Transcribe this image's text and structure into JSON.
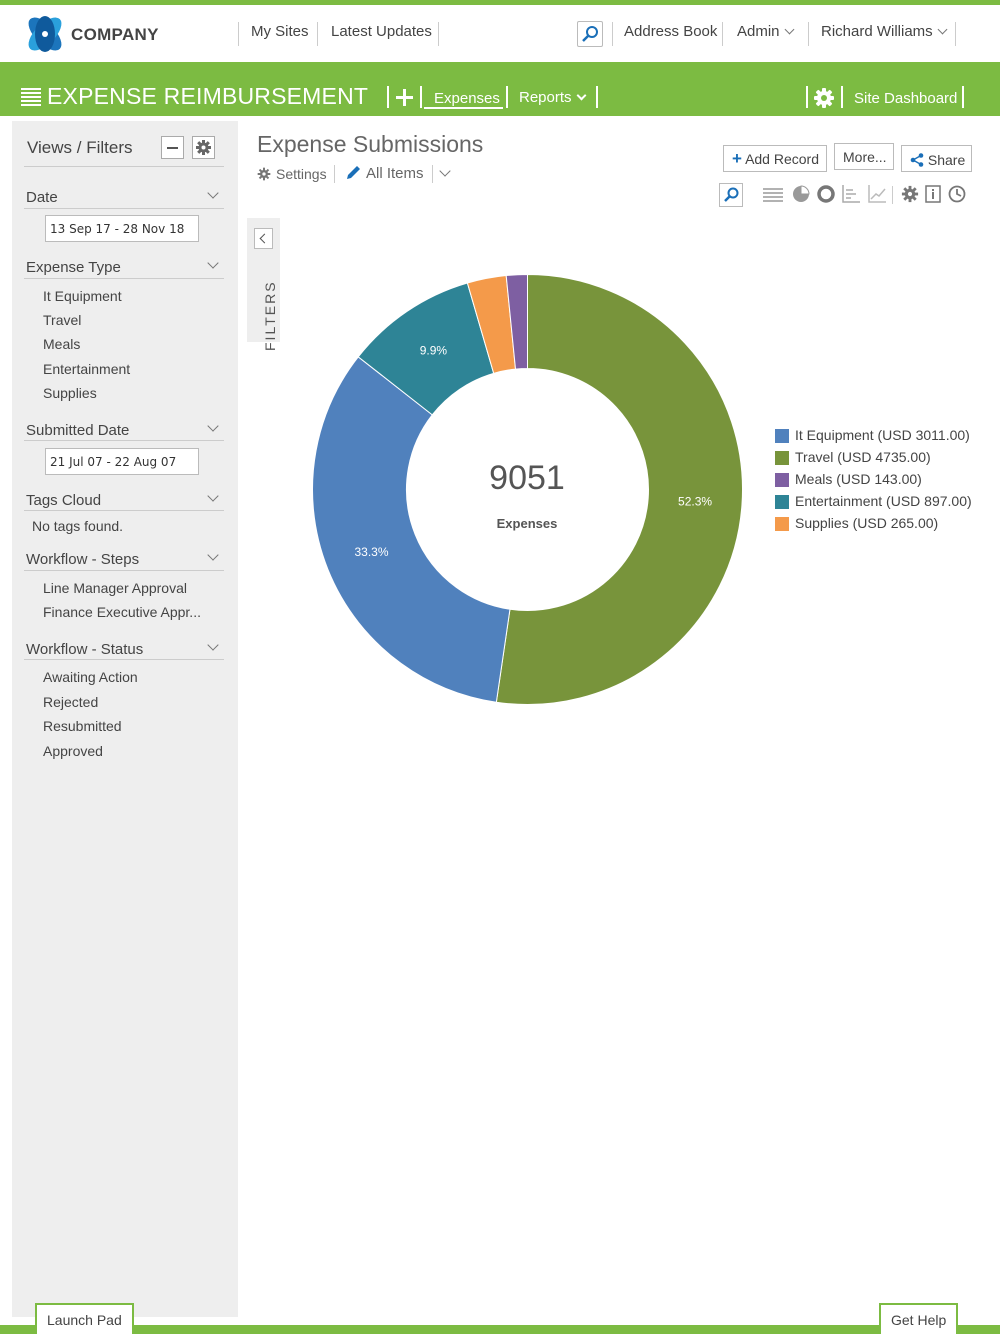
{
  "header": {
    "brand": "COMPANY",
    "nav": [
      "My Sites",
      "Latest Updates"
    ],
    "address_book": "Address Book",
    "admin": "Admin",
    "user": "Richard Williams"
  },
  "appbar": {
    "title": "EXPENSE REIMBURSEMENT",
    "tab_expenses": "Expenses",
    "tab_reports": "Reports",
    "site_dashboard": "Site Dashboard"
  },
  "sidebar": {
    "title": "Views / Filters",
    "date": {
      "label": "Date",
      "value": "13 Sep 17 - 28 Nov 18"
    },
    "expense_type": {
      "label": "Expense Type",
      "items": [
        "It Equipment",
        "Travel",
        "Meals",
        "Entertainment",
        "Supplies"
      ]
    },
    "submitted_date": {
      "label": "Submitted Date",
      "value": "21 Jul 07 - 22 Aug 07"
    },
    "tags_cloud": {
      "label": "Tags Cloud",
      "empty": "No tags found."
    },
    "workflow_steps": {
      "label": "Workflow - Steps",
      "items": [
        "Line Manager Approval",
        "Finance Executive Appr..."
      ]
    },
    "workflow_status": {
      "label": "Workflow - Status",
      "items": [
        "Awaiting Action",
        "Rejected",
        "Resubmitted",
        "Approved"
      ]
    }
  },
  "filters_tab": "FILTERS",
  "main": {
    "title": "Expense Submissions",
    "settings": "Settings",
    "view": "All Items",
    "add_record": "Add Record",
    "more": "More...",
    "share": "Share"
  },
  "chart_data": {
    "type": "pie",
    "center_value": "9051",
    "center_label": "Expenses",
    "series": [
      {
        "name": "It Equipment (USD 3011.00)",
        "value": 3011,
        "percent_label": "33.3%",
        "color": "#5081bd"
      },
      {
        "name": "Travel (USD 4735.00)",
        "value": 4735,
        "percent_label": "52.3%",
        "color": "#78943b"
      },
      {
        "name": "Meals (USD 143.00)",
        "value": 143,
        "percent_label": "",
        "color": "#7e5fa2"
      },
      {
        "name": "Entertainment (USD 897.00)",
        "value": 897,
        "percent_label": "9.9%",
        "color": "#2e8496"
      },
      {
        "name": "Supplies (USD 265.00)",
        "value": 265,
        "percent_label": "",
        "color": "#f49a4a"
      }
    ],
    "slice_order": [
      "Travel (USD 4735.00)",
      "It Equipment (USD 3011.00)",
      "Entertainment (USD 897.00)",
      "Supplies (USD 265.00)",
      "Meals (USD 143.00)"
    ],
    "legend_position": "right"
  },
  "footer": {
    "launch_pad": "Launch Pad",
    "get_help": "Get Help"
  },
  "colors": {
    "brand_green": "#7cbb42",
    "accent_blue": "#1a6fb8"
  }
}
